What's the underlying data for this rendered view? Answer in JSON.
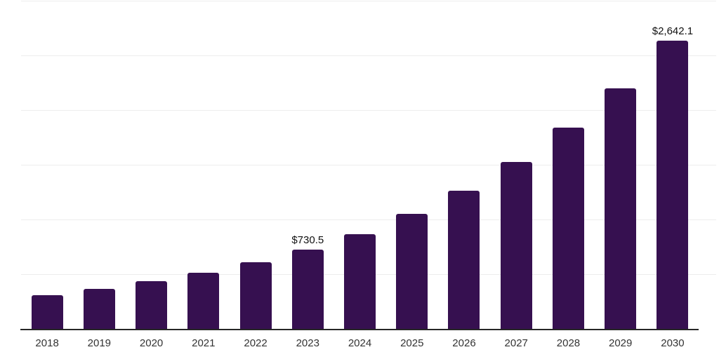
{
  "chart_data": {
    "type": "bar",
    "title": "",
    "xlabel": "",
    "ylabel": "",
    "categories": [
      "2018",
      "2019",
      "2020",
      "2021",
      "2022",
      "2023",
      "2024",
      "2025",
      "2026",
      "2027",
      "2028",
      "2029",
      "2030"
    ],
    "values": [
      315,
      375,
      440,
      520,
      615,
      730.5,
      875,
      1055,
      1270,
      1535,
      1845,
      2205,
      2642.1
    ],
    "data_labels": [
      "",
      "",
      "",
      "",
      "",
      "$730.5",
      "",
      "",
      "",
      "",
      "",
      "",
      "$2,642.1"
    ],
    "ylim": [
      0,
      3000
    ],
    "gridline_step": 500,
    "grid": true,
    "legend": false,
    "colors": {
      "bar": "#361050",
      "gridline": "#ededed",
      "axis": "#262626",
      "tick_label": "#333333",
      "value_label": "#111111"
    }
  }
}
